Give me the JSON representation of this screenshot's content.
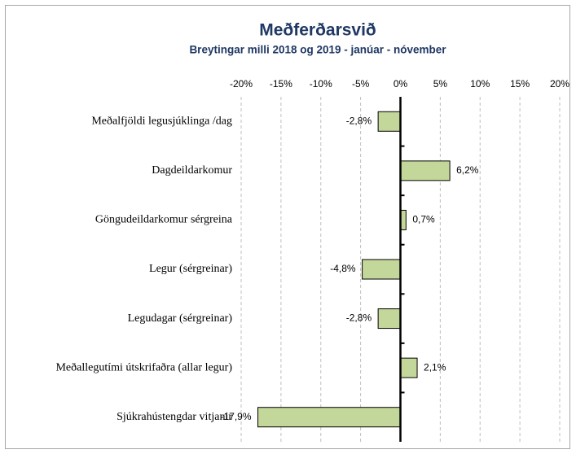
{
  "chart_data": {
    "type": "bar",
    "orientation": "horizontal",
    "title": "Meðferðarsvið",
    "subtitle": "Breytingar milli 2018 og 2019 - janúar - nóvember",
    "categories": [
      "Meðalfjöldi legusjúklinga /dag",
      "Dagdeildarkomur",
      "Göngudeildarkomur sérgreina",
      "Legur (sérgreinar)",
      "Legudagar (sérgreinar)",
      "Meðallegutími útskrifaðra (allar legur)",
      "Sjúkrahústengdar vitjanir"
    ],
    "values": [
      -2.8,
      6.2,
      0.7,
      -4.8,
      -2.8,
      2.1,
      -17.9
    ],
    "value_labels": [
      "-2,8%",
      "6,2%",
      "0,7%",
      "-4,8%",
      "-2,8%",
      "2,1%",
      "-17,9%"
    ],
    "color": "#c4d79b",
    "xlim": [
      -20,
      20
    ],
    "xticks": [
      {
        "value": -20,
        "label": "-20%"
      },
      {
        "value": -15,
        "label": "-15%"
      },
      {
        "value": -10,
        "label": "-10%"
      },
      {
        "value": -5,
        "label": "-5%"
      },
      {
        "value": 0,
        "label": "0%"
      },
      {
        "value": 5,
        "label": "5%"
      },
      {
        "value": 10,
        "label": "10%"
      },
      {
        "value": 15,
        "label": "15%"
      },
      {
        "value": 20,
        "label": "20%"
      }
    ],
    "grid": true
  }
}
